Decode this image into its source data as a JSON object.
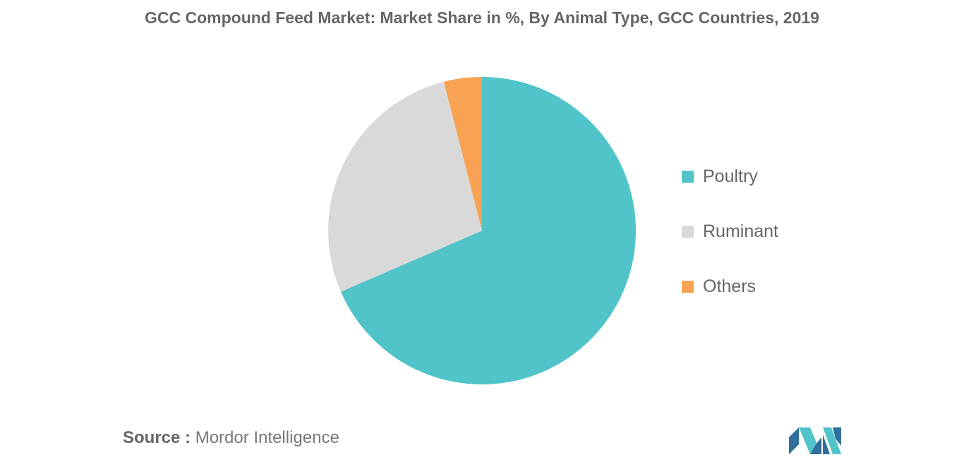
{
  "chart_data": {
    "type": "pie",
    "title": "GCC Compound Feed Market: Market Share in %, By Animal Type, GCC Countries, 2019",
    "slices": [
      {
        "name": "Poultry",
        "value": 68.5,
        "color": "#50c4c9"
      },
      {
        "name": "Ruminant",
        "value": 27.5,
        "color": "#d9d9d9"
      },
      {
        "name": "Others",
        "value": 4.0,
        "color": "#f8a354"
      }
    ],
    "legend_position": "right"
  },
  "source": {
    "label": "Source :",
    "text": "Mordor Intelligence"
  },
  "logo": {
    "icon": "mordor-intelligence-logo-icon",
    "colors": [
      "#2f6f9a",
      "#50c4c9"
    ]
  }
}
